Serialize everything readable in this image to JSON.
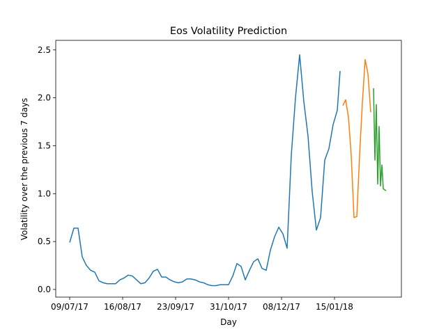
{
  "chart_data": {
    "type": "line",
    "title": "Eos Volatility Prediction",
    "x_label": "Day",
    "y_label": "Volatility over the previous 7 days",
    "xlim": [
      "29/06/17",
      "04/03/18"
    ],
    "xticks": [
      "09/07/17",
      "16/08/17",
      "23/09/17",
      "31/10/17",
      "08/12/17",
      "15/01/18"
    ],
    "ylim": [
      -0.08,
      2.6
    ],
    "yticks": [
      {
        "value": 0,
        "label": "0.0"
      },
      0.5,
      {
        "value": 1,
        "label": "1.0"
      },
      1.5,
      {
        "value": 2,
        "label": "2.0"
      },
      2.5
    ],
    "grid": false,
    "series": [
      {
        "color": "#1f77b4",
        "x": [
          "09/07/17",
          "12/07/17",
          "15/07/17",
          "18/07/17",
          "21/07/17",
          "24/07/17",
          "27/07/17",
          "30/07/17",
          "02/08/17",
          "05/08/17",
          "08/08/17",
          "11/08/17",
          "14/08/17",
          "17/08/17",
          "20/08/17",
          "23/08/17",
          "26/08/17",
          "29/08/17",
          "01/09/17",
          "04/09/17",
          "07/09/17",
          "10/09/17",
          "13/09/17",
          "16/09/17",
          "19/09/17",
          "22/09/17",
          "25/09/17",
          "28/09/17",
          "01/10/17",
          "04/10/17",
          "07/10/17",
          "10/10/17",
          "13/10/17",
          "16/10/17",
          "19/10/17",
          "22/10/17",
          "25/10/17",
          "28/10/17",
          "31/10/17",
          "03/11/17",
          "06/11/17",
          "09/11/17",
          "12/11/17",
          "15/11/17",
          "18/11/17",
          "21/11/17",
          "24/11/17",
          "27/11/17",
          "30/11/17",
          "03/12/17",
          "06/12/17",
          "09/12/17",
          "12/12/17",
          "15/12/17",
          "18/12/17",
          "21/12/17",
          "24/12/17",
          "27/12/17",
          "30/12/17",
          "02/01/18",
          "05/01/18",
          "08/01/18",
          "11/01/18",
          "14/01/18",
          "17/01/18",
          "19/01/18"
        ],
        "values": [
          0.49,
          0.64,
          0.64,
          0.34,
          0.25,
          0.2,
          0.18,
          0.09,
          0.07,
          0.06,
          0.06,
          0.06,
          0.1,
          0.12,
          0.15,
          0.14,
          0.1,
          0.06,
          0.07,
          0.12,
          0.19,
          0.21,
          0.13,
          0.13,
          0.1,
          0.08,
          0.07,
          0.08,
          0.11,
          0.11,
          0.1,
          0.08,
          0.07,
          0.05,
          0.04,
          0.04,
          0.05,
          0.05,
          0.05,
          0.14,
          0.27,
          0.24,
          0.1,
          0.2,
          0.29,
          0.32,
          0.22,
          0.2,
          0.41,
          0.55,
          0.65,
          0.58,
          0.43,
          1.4,
          2.0,
          2.45,
          1.96,
          1.6,
          1.02,
          0.62,
          0.75,
          1.35,
          1.47,
          1.72,
          1.87,
          2.28
        ]
      },
      {
        "color": "#ff7f0e",
        "x": [
          "21/01/18",
          "23/01/18",
          "25/01/18",
          "27/01/18",
          "29/01/18",
          "31/01/18",
          "02/02/18",
          "04/02/18",
          "06/02/18",
          "08/02/18",
          "10/02/18"
        ],
        "values": [
          1.92,
          1.98,
          1.8,
          1.4,
          0.75,
          0.76,
          1.4,
          1.95,
          2.4,
          2.25,
          1.85
        ]
      },
      {
        "color": "#2ca02c",
        "x": [
          "12/02/18",
          "13/02/18",
          "14/02/18",
          "15/02/18",
          "16/02/18",
          "17/02/18",
          "18/02/18",
          "19/02/18",
          "20/02/18",
          "21/02/18"
        ],
        "values": [
          2.1,
          1.35,
          1.93,
          1.1,
          1.7,
          1.08,
          1.3,
          1.05,
          1.04,
          1.03
        ]
      }
    ]
  }
}
